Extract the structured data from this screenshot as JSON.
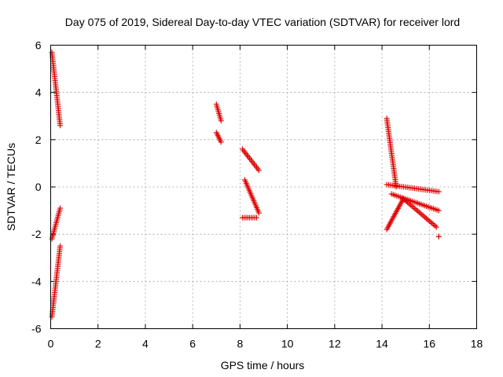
{
  "chart_data": {
    "type": "scatter",
    "title": "Day 075 of 2019, Sidereal Day-to-day VTEC variation (SDTVAR) for receiver lord",
    "xlabel": "GPS time / hours",
    "ylabel": "SDTVAR / TECUs",
    "xlim": [
      0,
      18
    ],
    "ylim": [
      -6,
      6
    ],
    "xticks": [
      0,
      2,
      4,
      6,
      8,
      10,
      12,
      14,
      16,
      18
    ],
    "yticks": [
      -6,
      -4,
      -2,
      0,
      2,
      4,
      6
    ],
    "xtick_labels": [
      "0",
      "2",
      "4",
      "6",
      "8",
      "10",
      "12",
      "14",
      "16",
      "18"
    ],
    "ytick_labels": [
      "-6",
      "-4",
      "-2",
      "0",
      "2",
      "4",
      "6"
    ],
    "grid": true,
    "marker": "+",
    "color": "#e00000",
    "segments": [
      {
        "name": "seg-a1",
        "x": [
          0.05,
          0.4
        ],
        "y": [
          5.7,
          2.6
        ]
      },
      {
        "name": "seg-a2",
        "x": [
          0.05,
          0.4
        ],
        "y": [
          -2.2,
          -0.9
        ]
      },
      {
        "name": "seg-a3",
        "x": [
          0.05,
          0.4
        ],
        "y": [
          -5.5,
          -2.5
        ]
      },
      {
        "name": "seg-b1",
        "x": [
          7.0,
          7.2
        ],
        "y": [
          3.5,
          2.8
        ]
      },
      {
        "name": "seg-b2",
        "x": [
          7.0,
          7.2
        ],
        "y": [
          2.3,
          1.9
        ]
      },
      {
        "name": "seg-c1",
        "x": [
          8.1,
          8.8
        ],
        "y": [
          1.6,
          0.7
        ]
      },
      {
        "name": "seg-c2",
        "x": [
          8.2,
          8.8
        ],
        "y": [
          0.3,
          -1.1
        ]
      },
      {
        "name": "seg-c3",
        "x": [
          8.1,
          8.7
        ],
        "y": [
          -1.3,
          -1.3
        ]
      },
      {
        "name": "seg-d1",
        "x": [
          14.2,
          14.6
        ],
        "y": [
          2.9,
          0.0
        ]
      },
      {
        "name": "seg-d2",
        "x": [
          14.2,
          16.4
        ],
        "y": [
          0.1,
          -0.2
        ]
      },
      {
        "name": "seg-d3",
        "x": [
          14.4,
          16.4
        ],
        "y": [
          -0.3,
          -1.0
        ]
      },
      {
        "name": "seg-d4",
        "x": [
          14.2,
          14.9
        ],
        "y": [
          -1.8,
          -0.5
        ]
      },
      {
        "name": "seg-d5",
        "x": [
          14.9,
          16.3
        ],
        "y": [
          -0.5,
          -1.7
        ]
      },
      {
        "name": "seg-d6",
        "x": [
          16.4,
          16.4
        ],
        "y": [
          -2.1,
          -2.1
        ]
      }
    ]
  }
}
